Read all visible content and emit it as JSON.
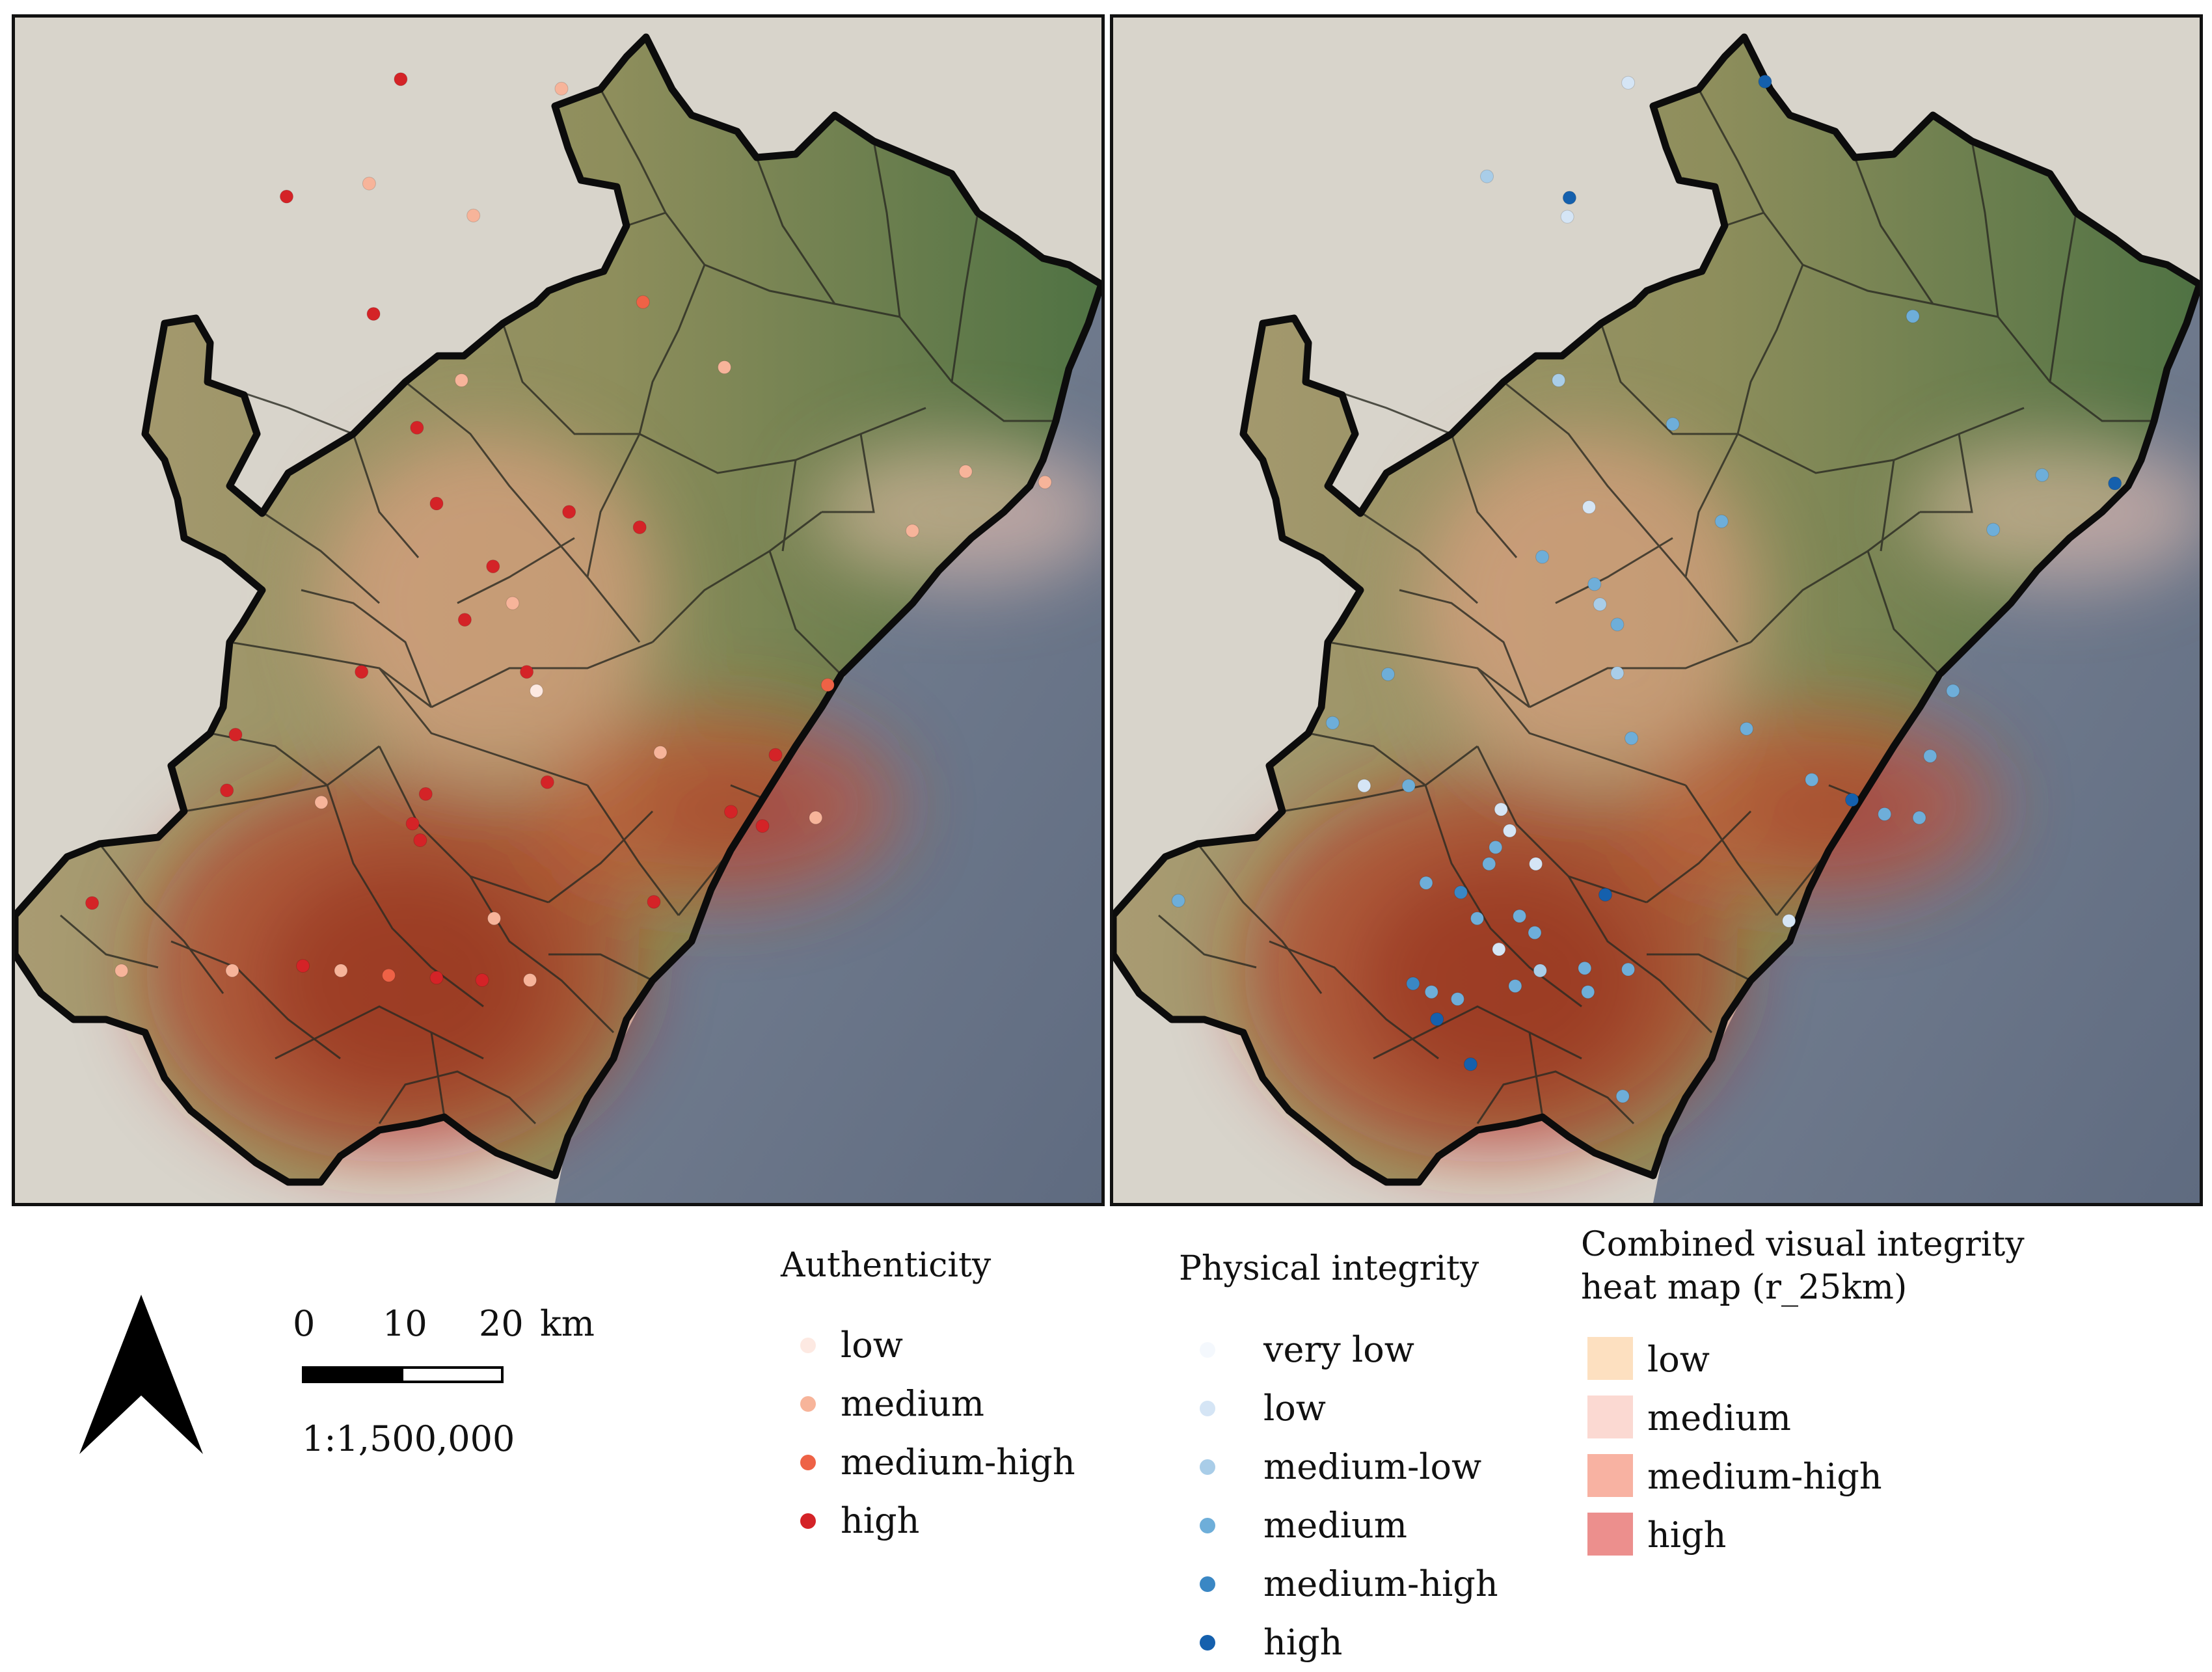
{
  "legend": {
    "authenticity": {
      "title": "Authenticity",
      "items": [
        {
          "label": "low",
          "color": "#fde9e2"
        },
        {
          "label": "medium",
          "color": "#f7b49a"
        },
        {
          "label": "medium-high",
          "color": "#ee6246"
        },
        {
          "label": "high",
          "color": "#d42327"
        }
      ]
    },
    "physical": {
      "title": "Physical integrity",
      "items": [
        {
          "label": "very low",
          "color": "#f4f8fd"
        },
        {
          "label": "low",
          "color": "#d5e5f5"
        },
        {
          "label": "medium-low",
          "color": "#a9cde8"
        },
        {
          "label": "medium",
          "color": "#6eaed9"
        },
        {
          "label": "medium-high",
          "color": "#3a87c4"
        },
        {
          "label": "high",
          "color": "#1560ad"
        }
      ]
    },
    "heatmap": {
      "title": "Combined visual integrity\nheat map (r_25km)",
      "items": [
        {
          "label": "low",
          "color": "#fde0c0"
        },
        {
          "label": "medium",
          "color": "#fbd9d2"
        },
        {
          "label": "medium-high",
          "color": "#f8b2a2"
        },
        {
          "label": "high",
          "color": "#ec8f8d"
        }
      ]
    }
  },
  "scale": {
    "ticks": [
      "0",
      "10",
      "20"
    ],
    "unit": "km",
    "ratio": "1:1,500,000"
  },
  "points_left": [
    {
      "lon": 0.355,
      "lat": 0.948,
      "level": 3
    },
    {
      "lon": 0.503,
      "lat": 0.94,
      "level": 1
    },
    {
      "lon": 0.25,
      "lat": 0.849,
      "level": 3
    },
    {
      "lon": 0.326,
      "lat": 0.86,
      "level": 1
    },
    {
      "lon": 0.422,
      "lat": 0.833,
      "level": 1
    },
    {
      "lon": 0.33,
      "lat": 0.75,
      "level": 3
    },
    {
      "lon": 0.578,
      "lat": 0.76,
      "level": 2
    },
    {
      "lon": 0.411,
      "lat": 0.694,
      "level": 1
    },
    {
      "lon": 0.653,
      "lat": 0.705,
      "level": 1
    },
    {
      "lon": 0.37,
      "lat": 0.654,
      "level": 3
    },
    {
      "lon": 0.875,
      "lat": 0.617,
      "level": 1
    },
    {
      "lon": 0.948,
      "lat": 0.608,
      "level": 1
    },
    {
      "lon": 0.388,
      "lat": 0.59,
      "level": 3
    },
    {
      "lon": 0.51,
      "lat": 0.583,
      "level": 3
    },
    {
      "lon": 0.575,
      "lat": 0.57,
      "level": 3
    },
    {
      "lon": 0.826,
      "lat": 0.567,
      "level": 1
    },
    {
      "lon": 0.44,
      "lat": 0.537,
      "level": 3
    },
    {
      "lon": 0.458,
      "lat": 0.506,
      "level": 1
    },
    {
      "lon": 0.414,
      "lat": 0.492,
      "level": 3
    },
    {
      "lon": 0.319,
      "lat": 0.448,
      "level": 3
    },
    {
      "lon": 0.471,
      "lat": 0.448,
      "level": 3
    },
    {
      "lon": 0.748,
      "lat": 0.437,
      "level": 2
    },
    {
      "lon": 0.48,
      "lat": 0.432,
      "level": 0
    },
    {
      "lon": 0.203,
      "lat": 0.395,
      "level": 3
    },
    {
      "lon": 0.594,
      "lat": 0.38,
      "level": 1
    },
    {
      "lon": 0.7,
      "lat": 0.378,
      "level": 3
    },
    {
      "lon": 0.195,
      "lat": 0.348,
      "level": 3
    },
    {
      "lon": 0.49,
      "lat": 0.355,
      "level": 3
    },
    {
      "lon": 0.282,
      "lat": 0.338,
      "level": 1
    },
    {
      "lon": 0.378,
      "lat": 0.345,
      "level": 3
    },
    {
      "lon": 0.366,
      "lat": 0.32,
      "level": 3
    },
    {
      "lon": 0.373,
      "lat": 0.306,
      "level": 3
    },
    {
      "lon": 0.659,
      "lat": 0.33,
      "level": 3
    },
    {
      "lon": 0.688,
      "lat": 0.318,
      "level": 3
    },
    {
      "lon": 0.737,
      "lat": 0.325,
      "level": 1
    },
    {
      "lon": 0.071,
      "lat": 0.253,
      "level": 3
    },
    {
      "lon": 0.588,
      "lat": 0.254,
      "level": 3
    },
    {
      "lon": 0.441,
      "lat": 0.24,
      "level": 1
    },
    {
      "lon": 0.098,
      "lat": 0.196,
      "level": 1
    },
    {
      "lon": 0.2,
      "lat": 0.196,
      "level": 1
    },
    {
      "lon": 0.265,
      "lat": 0.2,
      "level": 3
    },
    {
      "lon": 0.3,
      "lat": 0.196,
      "level": 1
    },
    {
      "lon": 0.344,
      "lat": 0.192,
      "level": 2
    },
    {
      "lon": 0.388,
      "lat": 0.19,
      "level": 3
    },
    {
      "lon": 0.43,
      "lat": 0.188,
      "level": 3
    },
    {
      "lon": 0.474,
      "lat": 0.188,
      "level": 1
    }
  ],
  "points_right": [
    {
      "lon": 0.474,
      "lat": 0.945,
      "level": 1
    },
    {
      "lon": 0.6,
      "lat": 0.946,
      "level": 5
    },
    {
      "lon": 0.42,
      "lat": 0.848,
      "level": 5
    },
    {
      "lon": 0.344,
      "lat": 0.866,
      "level": 2
    },
    {
      "lon": 0.418,
      "lat": 0.832,
      "level": 1
    },
    {
      "lon": 0.736,
      "lat": 0.748,
      "level": 3
    },
    {
      "lon": 0.41,
      "lat": 0.694,
      "level": 2
    },
    {
      "lon": 0.515,
      "lat": 0.657,
      "level": 3
    },
    {
      "lon": 0.855,
      "lat": 0.614,
      "level": 3
    },
    {
      "lon": 0.922,
      "lat": 0.607,
      "level": 5
    },
    {
      "lon": 0.438,
      "lat": 0.587,
      "level": 1
    },
    {
      "lon": 0.56,
      "lat": 0.575,
      "level": 3
    },
    {
      "lon": 0.81,
      "lat": 0.568,
      "level": 3
    },
    {
      "lon": 0.395,
      "lat": 0.545,
      "level": 3
    },
    {
      "lon": 0.443,
      "lat": 0.522,
      "level": 3
    },
    {
      "lon": 0.448,
      "lat": 0.505,
      "level": 2
    },
    {
      "lon": 0.464,
      "lat": 0.488,
      "level": 3
    },
    {
      "lon": 0.253,
      "lat": 0.446,
      "level": 3
    },
    {
      "lon": 0.464,
      "lat": 0.447,
      "level": 2
    },
    {
      "lon": 0.773,
      "lat": 0.432,
      "level": 3
    },
    {
      "lon": 0.202,
      "lat": 0.405,
      "level": 3
    },
    {
      "lon": 0.583,
      "lat": 0.4,
      "level": 3
    },
    {
      "lon": 0.752,
      "lat": 0.377,
      "level": 3
    },
    {
      "lon": 0.477,
      "lat": 0.392,
      "level": 3
    },
    {
      "lon": 0.231,
      "lat": 0.352,
      "level": 1
    },
    {
      "lon": 0.272,
      "lat": 0.352,
      "level": 3
    },
    {
      "lon": 0.643,
      "lat": 0.357,
      "level": 3
    },
    {
      "lon": 0.68,
      "lat": 0.34,
      "level": 5
    },
    {
      "lon": 0.71,
      "lat": 0.328,
      "level": 3
    },
    {
      "lon": 0.742,
      "lat": 0.325,
      "level": 3
    },
    {
      "lon": 0.357,
      "lat": 0.332,
      "level": 1
    },
    {
      "lon": 0.365,
      "lat": 0.314,
      "level": 1
    },
    {
      "lon": 0.352,
      "lat": 0.3,
      "level": 3
    },
    {
      "lon": 0.346,
      "lat": 0.286,
      "level": 3
    },
    {
      "lon": 0.389,
      "lat": 0.286,
      "level": 1
    },
    {
      "lon": 0.453,
      "lat": 0.26,
      "level": 5
    },
    {
      "lon": 0.622,
      "lat": 0.238,
      "level": 1
    },
    {
      "lon": 0.06,
      "lat": 0.255,
      "level": 3
    },
    {
      "lon": 0.32,
      "lat": 0.262,
      "level": 4
    },
    {
      "lon": 0.288,
      "lat": 0.27,
      "level": 3
    },
    {
      "lon": 0.335,
      "lat": 0.24,
      "level": 3
    },
    {
      "lon": 0.374,
      "lat": 0.242,
      "level": 3
    },
    {
      "lon": 0.388,
      "lat": 0.228,
      "level": 3
    },
    {
      "lon": 0.355,
      "lat": 0.214,
      "level": 1
    },
    {
      "lon": 0.393,
      "lat": 0.196,
      "level": 2
    },
    {
      "lon": 0.434,
      "lat": 0.198,
      "level": 3
    },
    {
      "lon": 0.474,
      "lat": 0.197,
      "level": 3
    },
    {
      "lon": 0.276,
      "lat": 0.185,
      "level": 4
    },
    {
      "lon": 0.293,
      "lat": 0.178,
      "level": 3
    },
    {
      "lon": 0.317,
      "lat": 0.172,
      "level": 3
    },
    {
      "lon": 0.37,
      "lat": 0.183,
      "level": 3
    },
    {
      "lon": 0.437,
      "lat": 0.178,
      "level": 3
    },
    {
      "lon": 0.298,
      "lat": 0.155,
      "level": 5
    },
    {
      "lon": 0.329,
      "lat": 0.117,
      "level": 5
    },
    {
      "lon": 0.469,
      "lat": 0.09,
      "level": 3
    }
  ]
}
